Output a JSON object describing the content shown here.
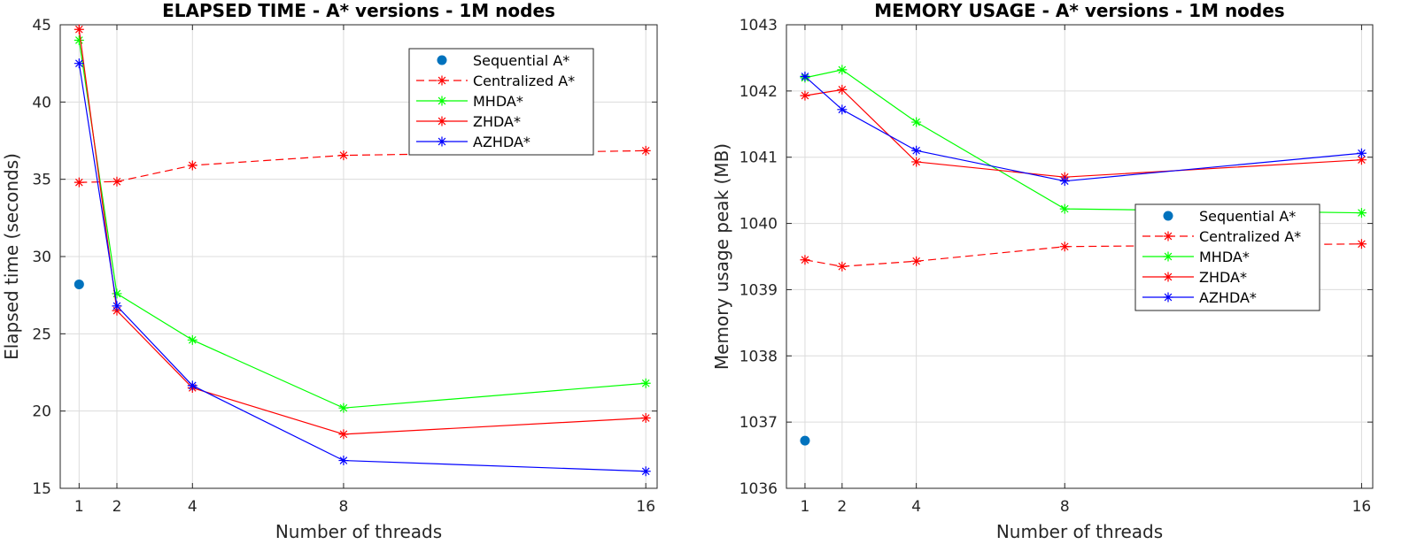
{
  "chart_data": [
    {
      "type": "line",
      "title": "ELAPSED TIME - A* versions - 1M nodes",
      "xlabel": "Number of threads",
      "ylabel": "Elapsed time (seconds)",
      "xlim": [
        0.5,
        16.3
      ],
      "ylim": [
        15,
        45
      ],
      "xticks": [
        1,
        2,
        4,
        8,
        16
      ],
      "yticks": [
        15,
        20,
        25,
        30,
        35,
        40,
        45
      ],
      "grid": true,
      "legend_position": "top-right",
      "series": [
        {
          "name": "Sequential A*",
          "color": "#0072BD",
          "style": "dot",
          "x": [
            1
          ],
          "y": [
            28.2
          ]
        },
        {
          "name": "Centralized A*",
          "color": "#FF0000",
          "style": "dashed-star",
          "x": [
            1,
            2,
            4,
            8,
            16
          ],
          "y": [
            34.8,
            34.85,
            35.9,
            36.55,
            36.85
          ]
        },
        {
          "name": "MHDA*",
          "color": "#00FF00",
          "style": "solid-star",
          "x": [
            1,
            2,
            4,
            8,
            16
          ],
          "y": [
            44.0,
            27.6,
            24.6,
            20.2,
            21.8
          ]
        },
        {
          "name": "ZHDA*",
          "color": "#FF0000",
          "style": "solid-star",
          "x": [
            1,
            2,
            4,
            8,
            16
          ],
          "y": [
            44.7,
            26.5,
            21.5,
            18.5,
            19.55
          ]
        },
        {
          "name": "AZHDA*",
          "color": "#0000FF",
          "style": "solid-star",
          "x": [
            1,
            2,
            4,
            8,
            16
          ],
          "y": [
            42.5,
            26.8,
            21.65,
            16.8,
            16.1
          ]
        }
      ]
    },
    {
      "type": "line",
      "title": "MEMORY USAGE - A* versions - 1M nodes",
      "xlabel": "Number of threads",
      "ylabel": "Memory usage peak (MB)",
      "xlim": [
        0.5,
        16.3
      ],
      "ylim": [
        1036,
        1043
      ],
      "xticks": [
        1,
        2,
        4,
        8,
        16
      ],
      "yticks": [
        1036,
        1037,
        1038,
        1039,
        1040,
        1041,
        1042,
        1043
      ],
      "grid": true,
      "legend_position": "center-right",
      "series": [
        {
          "name": "Sequential A*",
          "color": "#0072BD",
          "style": "dot",
          "x": [
            1
          ],
          "y": [
            1036.72
          ]
        },
        {
          "name": "Centralized A*",
          "color": "#FF0000",
          "style": "dashed-star",
          "x": [
            1,
            2,
            4,
            8,
            16
          ],
          "y": [
            1039.45,
            1039.35,
            1039.43,
            1039.65,
            1039.69
          ]
        },
        {
          "name": "MHDA*",
          "color": "#00FF00",
          "style": "solid-star",
          "x": [
            1,
            2,
            4,
            8,
            16
          ],
          "y": [
            1042.2,
            1042.32,
            1041.53,
            1040.22,
            1040.16
          ]
        },
        {
          "name": "ZHDA*",
          "color": "#FF0000",
          "style": "solid-star",
          "x": [
            1,
            2,
            4,
            8,
            16
          ],
          "y": [
            1041.93,
            1042.02,
            1040.93,
            1040.7,
            1040.96
          ]
        },
        {
          "name": "AZHDA*",
          "color": "#0000FF",
          "style": "solid-star",
          "x": [
            1,
            2,
            4,
            8,
            16
          ],
          "y": [
            1042.22,
            1041.72,
            1041.1,
            1040.64,
            1041.06
          ]
        }
      ]
    }
  ]
}
